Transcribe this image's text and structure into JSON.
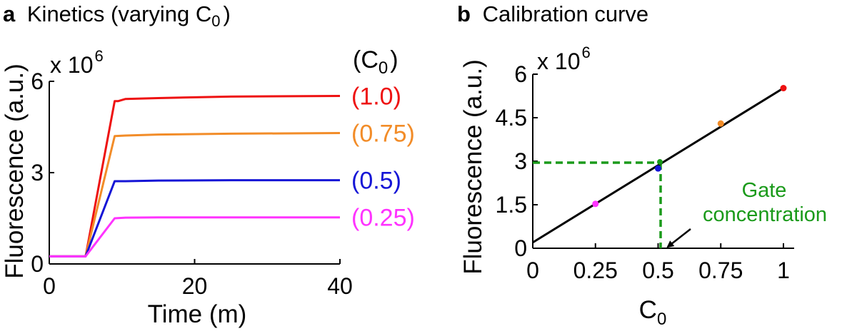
{
  "chart_data": [
    {
      "type": "line",
      "panel_letter": "a",
      "title": "Kinetics (varying C",
      "title_sub": "0",
      "title_end": ")",
      "xlabel": "Time (m)",
      "ylabel": "Fluorescence (a.u.)",
      "y_multiplier": "x 10",
      "y_multiplier_exp": "6",
      "xlim": [
        0,
        40
      ],
      "ylim": [
        0,
        6
      ],
      "xticks": [
        0,
        20,
        40
      ],
      "xtick_labels": [
        "0",
        "20",
        "40"
      ],
      "yticks": [
        0,
        3,
        6
      ],
      "ytick_labels": [
        "0",
        "3",
        "6"
      ],
      "legend_title": "(C",
      "legend_title_sub": "0",
      "legend_title_end": ")",
      "series": [
        {
          "name": "(1.0)",
          "color": "#ee1111",
          "x": [
            0,
            5,
            9,
            9.5,
            10.5,
            15,
            25,
            40
          ],
          "values": [
            0.25,
            0.25,
            5.35,
            5.35,
            5.42,
            5.45,
            5.5,
            5.52
          ]
        },
        {
          "name": "(0.75)",
          "color": "#f28c28",
          "x": [
            0,
            5,
            9,
            10.5,
            15,
            25,
            40
          ],
          "values": [
            0.25,
            0.25,
            4.2,
            4.22,
            4.25,
            4.28,
            4.3
          ]
        },
        {
          "name": "(0.5)",
          "color": "#1515d6",
          "x": [
            0,
            5,
            9,
            10.5,
            15,
            25,
            40
          ],
          "values": [
            0.25,
            0.25,
            2.72,
            2.72,
            2.74,
            2.75,
            2.75
          ]
        },
        {
          "name": "(0.25)",
          "color": "#ff33ff",
          "x": [
            0,
            5,
            9,
            10.5,
            15,
            25,
            40
          ],
          "values": [
            0.25,
            0.25,
            1.5,
            1.52,
            1.53,
            1.53,
            1.53
          ]
        }
      ]
    },
    {
      "type": "scatter",
      "panel_letter": "b",
      "title": "Calibration curve",
      "xlabel": "C",
      "xlabel_sub": "0",
      "ylabel": "Fluorescence (a.u.)",
      "y_multiplier": "x 10",
      "y_multiplier_exp": "6",
      "xlim": [
        0,
        1
      ],
      "ylim": [
        0,
        6
      ],
      "xticks": [
        0,
        0.25,
        0.5,
        0.75,
        1
      ],
      "xtick_labels": [
        "0",
        "0.25",
        "0.5",
        "0.75",
        "1"
      ],
      "yticks": [
        0,
        1.5,
        3,
        4.5,
        6
      ],
      "ytick_labels": [
        "0",
        "1.5",
        "3",
        "4.5",
        "6"
      ],
      "points": [
        {
          "x": 0.25,
          "y": 1.53,
          "color": "#ff33ff"
        },
        {
          "x": 0.5,
          "y": 2.75,
          "color": "#1515d6"
        },
        {
          "x": 0.75,
          "y": 4.3,
          "color": "#f28c28"
        },
        {
          "x": 1.0,
          "y": 5.52,
          "color": "#ee1111"
        }
      ],
      "fit_line": {
        "x": [
          0,
          1
        ],
        "y": [
          0.2,
          5.52
        ],
        "color": "#000000"
      },
      "gate_marker": {
        "x": 0.51,
        "y": 2.95,
        "color": "#1a9a1a"
      },
      "annotation_line1": "Gate",
      "annotation_line2": "concentration",
      "annotation_color": "#1a9a1a"
    }
  ]
}
